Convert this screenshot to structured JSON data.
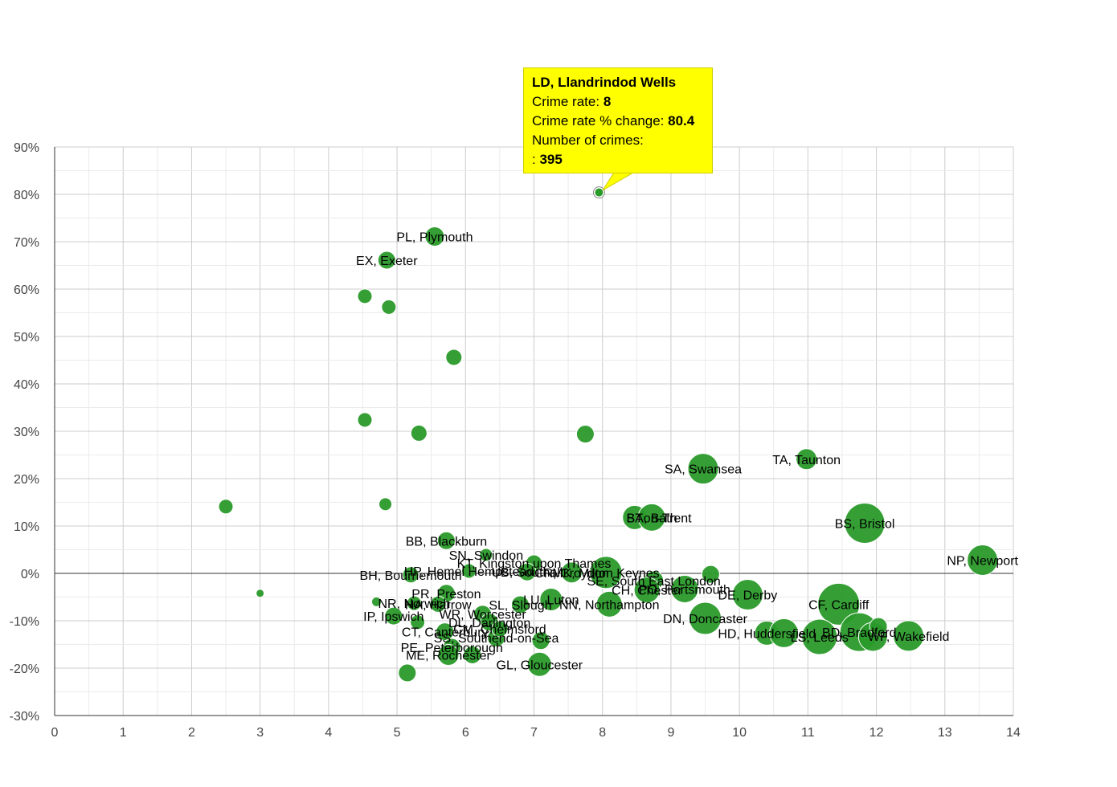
{
  "chart_data": {
    "type": "bubble-scatter",
    "title": "",
    "xlabel": "",
    "ylabel": "",
    "xlim": [
      0,
      14
    ],
    "ylim": [
      -30,
      90
    ],
    "x_ticks": [
      "0",
      "1",
      "2",
      "3",
      "4",
      "5",
      "6",
      "7",
      "8",
      "9",
      "10",
      "11",
      "12",
      "13",
      "14"
    ],
    "y_ticks": [
      "-30%",
      "-20%",
      "-10%",
      "0%",
      "10%",
      "20%",
      "30%",
      "40%",
      "50%",
      "60%",
      "70%",
      "80%",
      "90%"
    ],
    "grid": true,
    "bubble_color": "#2a9a2a",
    "highlight_color": "#2a9a2a",
    "points": [
      {
        "x": 2.5,
        "y": 14.1,
        "r": 9,
        "label": ""
      },
      {
        "x": 3.0,
        "y": -4.2,
        "r": 5,
        "label": ""
      },
      {
        "x": 4.53,
        "y": 58.5,
        "r": 9,
        "label": ""
      },
      {
        "x": 4.53,
        "y": 32.4,
        "r": 9,
        "label": ""
      },
      {
        "x": 4.88,
        "y": 56.2,
        "r": 9,
        "label": ""
      },
      {
        "x": 4.83,
        "y": 14.6,
        "r": 8,
        "label": ""
      },
      {
        "x": 4.7,
        "y": -6.0,
        "r": 6,
        "label": ""
      },
      {
        "x": 5.32,
        "y": 29.6,
        "r": 10,
        "label": ""
      },
      {
        "x": 5.83,
        "y": 45.6,
        "r": 10,
        "label": ""
      },
      {
        "x": 7.75,
        "y": 29.4,
        "r": 11,
        "label": ""
      },
      {
        "x": 5.55,
        "y": 71.1,
        "r": 12,
        "label": "PL, Plymouth"
      },
      {
        "x": 4.85,
        "y": 66.1,
        "r": 11,
        "label": "EX, Exeter"
      },
      {
        "x": 9.47,
        "y": 22.1,
        "r": 19,
        "label": "SA, Swansea"
      },
      {
        "x": 10.98,
        "y": 24.1,
        "r": 13,
        "label": "TA, Taunton"
      },
      {
        "x": 11.83,
        "y": 10.6,
        "r": 25,
        "label": "BS, Bristol"
      },
      {
        "x": 13.55,
        "y": 2.8,
        "r": 19,
        "label": "NP, Newport"
      },
      {
        "x": 8.47,
        "y": 11.8,
        "r": 15,
        "label": "ST"
      },
      {
        "x": 8.72,
        "y": 11.8,
        "r": 17,
        "label": "BA, Bath"
      },
      {
        "x": 8.95,
        "y": 11.8,
        "r": 0,
        "label": "on-Trent"
      },
      {
        "x": 5.72,
        "y": 6.9,
        "r": 11,
        "label": "BB, Blackburn"
      },
      {
        "x": 6.3,
        "y": 3.9,
        "r": 8,
        "label": "SN, Swindon"
      },
      {
        "x": 5.2,
        "y": -0.3,
        "r": 10,
        "label": "BH, Bournemouth"
      },
      {
        "x": 6.05,
        "y": 0.5,
        "r": 9,
        "label": "HP, Hemel Hempstead"
      },
      {
        "x": 7.0,
        "y": 2.2,
        "r": 10,
        "label": "KT, Kingston upon Thames"
      },
      {
        "x": 6.9,
        "y": 0.3,
        "r": 11,
        "label": "UB, Southall"
      },
      {
        "x": 7.55,
        "y": 0.2,
        "r": 13,
        "label": "CR, Croydon"
      },
      {
        "x": 8.05,
        "y": 0.2,
        "r": 20,
        "label": "MK, Milton Keynes"
      },
      {
        "x": 8.75,
        "y": -1.5,
        "r": 12,
        "label": "SE, South East London"
      },
      {
        "x": 9.58,
        "y": -0.2,
        "r": 11,
        "label": ""
      },
      {
        "x": 8.65,
        "y": -3.5,
        "r": 16,
        "label": "CH, Chester"
      },
      {
        "x": 9.2,
        "y": -3.3,
        "r": 17,
        "label": "PO, Portsmouth"
      },
      {
        "x": 10.12,
        "y": -4.5,
        "r": 19,
        "label": "DE, Derby"
      },
      {
        "x": 7.25,
        "y": -5.5,
        "r": 14,
        "label": "LU, Luton"
      },
      {
        "x": 8.1,
        "y": -6.5,
        "r": 16,
        "label": "NN, Northampton"
      },
      {
        "x": 9.5,
        "y": -9.5,
        "r": 20,
        "label": "DN, Doncaster"
      },
      {
        "x": 11.45,
        "y": -6.5,
        "r": 26,
        "label": "CF, Cardiff"
      },
      {
        "x": 5.72,
        "y": -4.2,
        "r": 11,
        "label": "PR, Preston"
      },
      {
        "x": 5.6,
        "y": -6.5,
        "r": 10,
        "label": "HA, Harrow"
      },
      {
        "x": 5.25,
        "y": -6.3,
        "r": 9,
        "label": "NR, Norwich"
      },
      {
        "x": 6.8,
        "y": -6.6,
        "r": 11,
        "label": "SL, Slough"
      },
      {
        "x": 6.25,
        "y": -8.6,
        "r": 11,
        "label": "WR, Worcester"
      },
      {
        "x": 6.35,
        "y": -10.3,
        "r": 11,
        "label": "DL, Darlington"
      },
      {
        "x": 4.95,
        "y": -9.0,
        "r": 11,
        "label": "IP, Ipswich"
      },
      {
        "x": 5.3,
        "y": -10.3,
        "r": 9,
        "label": ""
      },
      {
        "x": 5.7,
        "y": -12.3,
        "r": 11,
        "label": "CT, Canterbury"
      },
      {
        "x": 6.45,
        "y": -13.6,
        "r": 11,
        "label": "SS, Southend-on-Sea"
      },
      {
        "x": 7.1,
        "y": -14.2,
        "r": 11,
        "label": ""
      },
      {
        "x": 6.5,
        "y": -11.7,
        "r": 10,
        "label": "CM, Chelmsford"
      },
      {
        "x": 5.8,
        "y": -15.6,
        "r": 11,
        "label": "PE, Peterborough"
      },
      {
        "x": 5.75,
        "y": -17.2,
        "r": 13,
        "label": "ME, Rochester"
      },
      {
        "x": 6.1,
        "y": -17.2,
        "r": 11,
        "label": ""
      },
      {
        "x": 5.15,
        "y": -21.0,
        "r": 11,
        "label": ""
      },
      {
        "x": 7.08,
        "y": -19.2,
        "r": 15,
        "label": "GL, Gloucester"
      },
      {
        "x": 10.4,
        "y": -12.6,
        "r": 15,
        "label": "HD, Huddersfield"
      },
      {
        "x": 10.65,
        "y": -12.6,
        "r": 18,
        "label": ""
      },
      {
        "x": 11.17,
        "y": -13.4,
        "r": 22,
        "label": "LS, Leeds"
      },
      {
        "x": 11.75,
        "y": -12.4,
        "r": 24,
        "label": "BD, Bradford"
      },
      {
        "x": 11.95,
        "y": -13.4,
        "r": 18,
        "label": ""
      },
      {
        "x": 12.03,
        "y": -11.2,
        "r": 11,
        "label": ""
      },
      {
        "x": 12.47,
        "y": -13.2,
        "r": 19,
        "label": "WF, Wakefield"
      }
    ],
    "highlight": {
      "x": 7.95,
      "y": 80.4,
      "r": 5,
      "label": "LD, Llandrindod Wells"
    }
  },
  "tooltip": {
    "title": "LD, Llandrindod Wells",
    "crime_rate_label": "Crime rate:",
    "crime_rate_value": "8",
    "change_label": "Crime rate % change:",
    "change_value": "80.4",
    "crimes_label": "Number of crimes:",
    "crimes_prefix": ":",
    "crimes_value": "395"
  }
}
